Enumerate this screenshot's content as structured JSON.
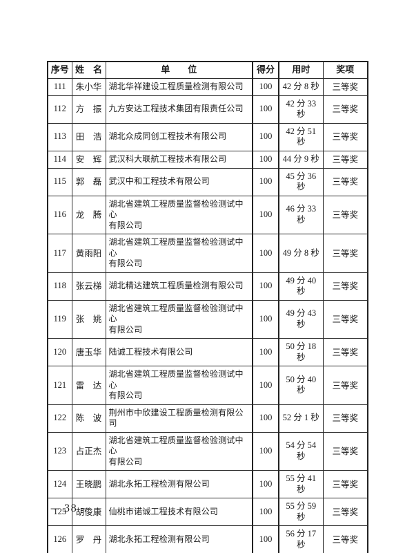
{
  "colors": {
    "background": "#ffffff",
    "text": "#1c1c1c",
    "table_border": "#222222"
  },
  "footer": {
    "page_number": "— 38 —"
  },
  "table": {
    "headers": {
      "no": "序号",
      "name": "姓　名",
      "unit": "单　　位",
      "score": "得分",
      "time": "用时",
      "award": "奖项"
    },
    "rows": [
      {
        "no": "111",
        "name": "朱小华",
        "unit": "湖北华祥建设工程质量检测有限公司",
        "score": "100",
        "time": "42 分 8 秒",
        "award": "三等奖"
      },
      {
        "no": "112",
        "name": "方　振",
        "unit": "九方安达工程技术集团有限责任公司",
        "score": "100",
        "time": "42 分 33 秒",
        "award": "三等奖"
      },
      {
        "no": "113",
        "name": "田　浩",
        "unit": "湖北众成同创工程技术有限公司",
        "score": "100",
        "time": "42 分 51 秒",
        "award": "三等奖"
      },
      {
        "no": "114",
        "name": "安　辉",
        "unit": "武汉科大联航工程技术有限公司",
        "score": "100",
        "time": "44 分 9 秒",
        "award": "三等奖"
      },
      {
        "no": "115",
        "name": "郭　磊",
        "unit": "武汉中和工程技术有限公司",
        "score": "100",
        "time": "45 分 36 秒",
        "award": "三等奖"
      },
      {
        "no": "116",
        "name": "龙　腾",
        "unit": "湖北省建筑工程质量监督检验测试中心\n有限公司",
        "score": "100",
        "time": "46 分 33 秒",
        "award": "三等奖"
      },
      {
        "no": "117",
        "name": "黄雨阳",
        "unit": "湖北省建筑工程质量监督检验测试中心\n有限公司",
        "score": "100",
        "time": "49 分 8 秒",
        "award": "三等奖"
      },
      {
        "no": "118",
        "name": "张云梯",
        "unit": "湖北精达建筑工程质量检测有限公司",
        "score": "100",
        "time": "49 分 40 秒",
        "award": "三等奖"
      },
      {
        "no": "119",
        "name": "张　姚",
        "unit": "湖北省建筑工程质量监督检验测试中心\n有限公司",
        "score": "100",
        "time": "49 分 43 秒",
        "award": "三等奖"
      },
      {
        "no": "120",
        "name": "唐玉华",
        "unit": "陆诚工程技术有限公司",
        "score": "100",
        "time": "50 分 18 秒",
        "award": "三等奖"
      },
      {
        "no": "121",
        "name": "雷　达",
        "unit": "湖北省建筑工程质量监督检验测试中心\n有限公司",
        "score": "100",
        "time": "50 分 40 秒",
        "award": "三等奖"
      },
      {
        "no": "122",
        "name": "陈　波",
        "unit": "荆州市中欣建设工程质量检测有限公司",
        "score": "100",
        "time": "52 分 1 秒",
        "award": "三等奖"
      },
      {
        "no": "123",
        "name": "占正杰",
        "unit": "湖北省建筑工程质量监督检验测试中心\n有限公司",
        "score": "100",
        "time": "54 分 54 秒",
        "award": "三等奖"
      },
      {
        "no": "124",
        "name": "王晓鹏",
        "unit": "湖北永拓工程检测有限公司",
        "score": "100",
        "time": "55 分 41 秒",
        "award": "三等奖"
      },
      {
        "no": "125",
        "name": "胡俊康",
        "unit": "仙桃市诺诚工程技术有限公司",
        "score": "100",
        "time": "55 分 59 秒",
        "award": "三等奖"
      },
      {
        "no": "126",
        "name": "罗　丹",
        "unit": "湖北永拓工程检测有限公司",
        "score": "100",
        "time": "56 分 17 秒",
        "award": "三等奖"
      }
    ]
  }
}
